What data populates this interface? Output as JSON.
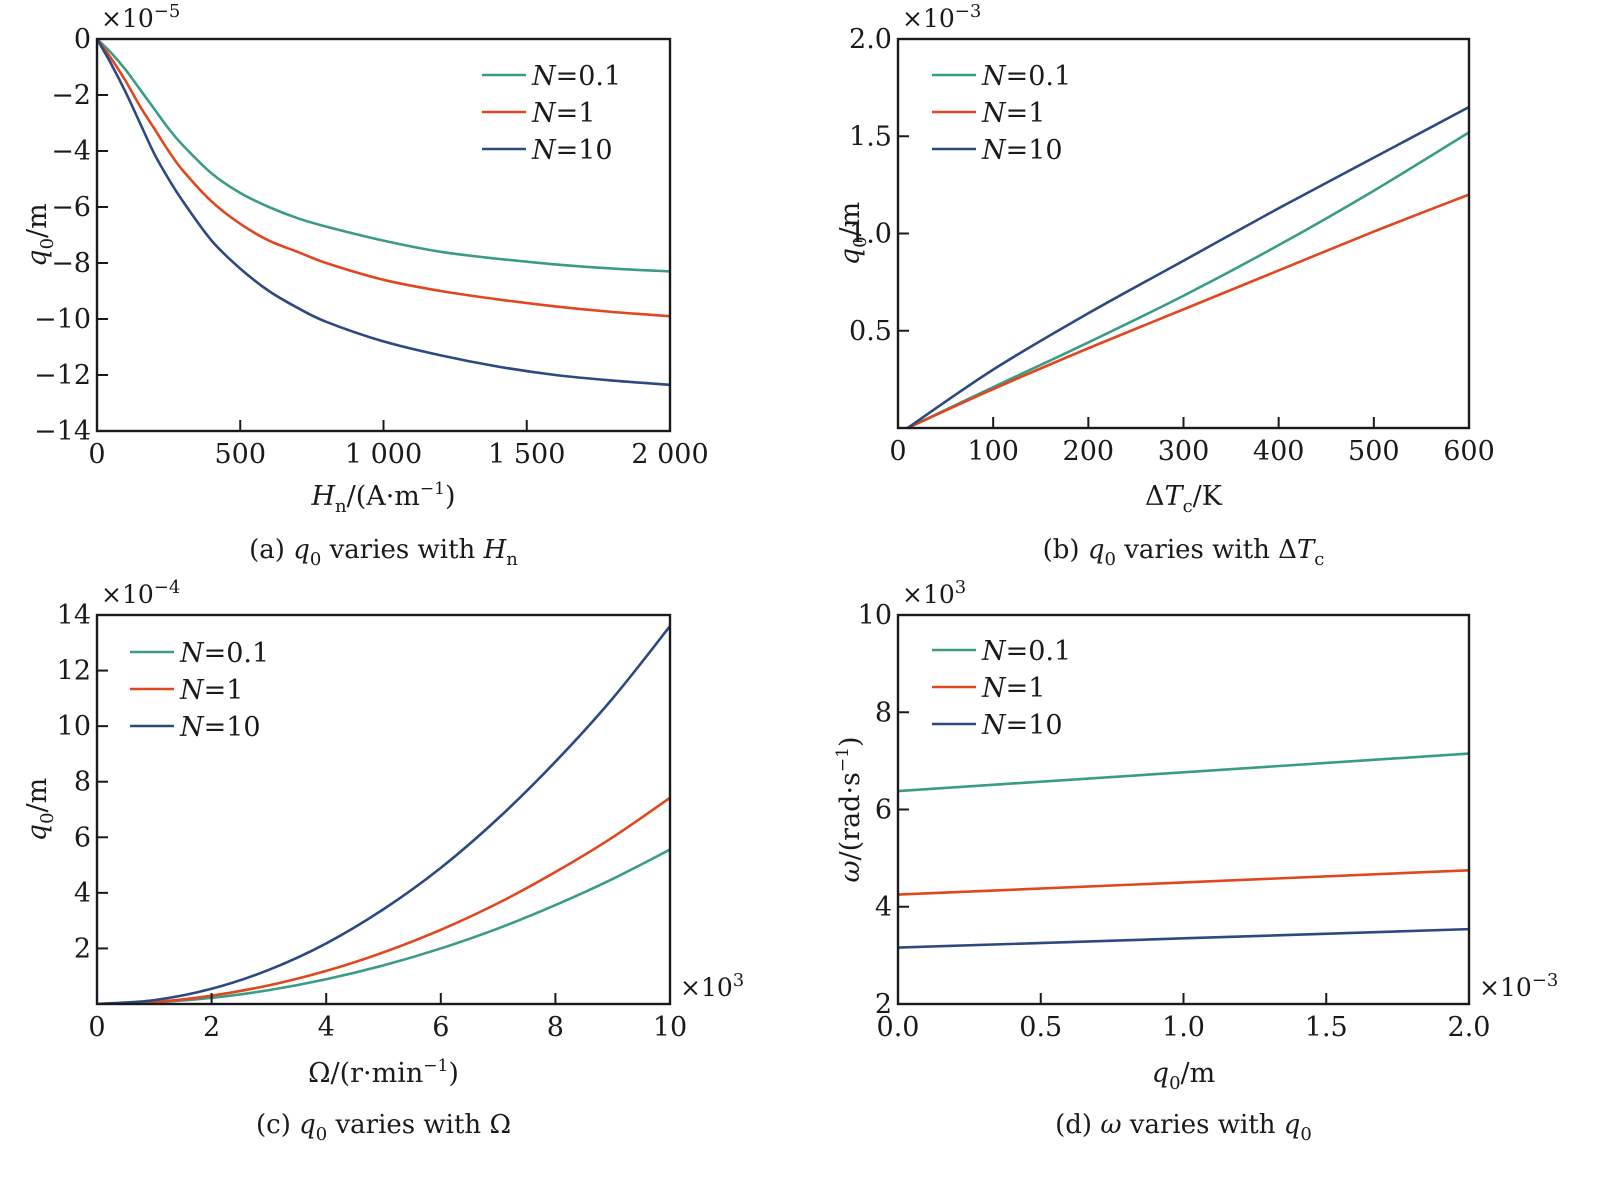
{
  "figure": {
    "colors": {
      "N=0.1": "#3a9c86",
      "N=1": "#e0471f",
      "N=10": "#2d4a80",
      "axis": "#1a1a1a"
    }
  },
  "chart_data": [
    {
      "id": "a",
      "type": "line",
      "caption": "(a) q0 varies with Hn",
      "caption_parts": [
        "(a) ",
        "q",
        "0",
        " varies with ",
        "H",
        "n"
      ],
      "xlabel": "Hn/(A·m⁻¹)",
      "xlabel_parts": [
        "H",
        "n",
        "/(A·m",
        "−1",
        ")"
      ],
      "ylabel": "q0/m",
      "ylabel_parts": [
        "q",
        "0",
        "/m"
      ],
      "y_multiplier": "×10⁻⁵",
      "y_multiplier_parts": [
        "×10",
        "−5"
      ],
      "x_multiplier": null,
      "xlim": [
        0,
        2000
      ],
      "ylim": [
        -14,
        0
      ],
      "xticks": [
        0,
        500,
        1000,
        1500,
        2000
      ],
      "xtick_labels": [
        "0",
        "500",
        "1 000",
        "1 500",
        "2 000"
      ],
      "yticks": [
        0,
        -2,
        -4,
        -6,
        -8,
        -10,
        -12,
        -14
      ],
      "ytick_labels": [
        "0",
        "−2",
        "−4",
        "−6",
        "−8",
        "−10",
        "−12",
        "−14"
      ],
      "grid": false,
      "legend_position": "top-right",
      "series": [
        {
          "name": "N=0.1",
          "label_var": "N",
          "label_val": "0.1",
          "x": [
            0,
            50,
            100,
            150,
            200,
            250,
            300,
            400,
            500,
            600,
            700,
            800,
            1000,
            1200,
            1400,
            1600,
            1800,
            2000
          ],
          "y": [
            0,
            -0.5,
            -1.1,
            -1.8,
            -2.5,
            -3.2,
            -3.8,
            -4.8,
            -5.5,
            -6.0,
            -6.4,
            -6.7,
            -7.2,
            -7.6,
            -7.85,
            -8.05,
            -8.2,
            -8.3
          ]
        },
        {
          "name": "N=1",
          "label_var": "N",
          "label_val": "1",
          "x": [
            0,
            50,
            100,
            150,
            200,
            250,
            300,
            400,
            500,
            600,
            700,
            800,
            1000,
            1200,
            1400,
            1600,
            1800,
            2000
          ],
          "y": [
            0,
            -0.7,
            -1.5,
            -2.4,
            -3.2,
            -4.0,
            -4.7,
            -5.8,
            -6.6,
            -7.2,
            -7.6,
            -8.0,
            -8.6,
            -9.0,
            -9.3,
            -9.55,
            -9.75,
            -9.9
          ]
        },
        {
          "name": "N=10",
          "label_var": "N",
          "label_val": "10",
          "x": [
            0,
            50,
            100,
            150,
            200,
            250,
            300,
            400,
            500,
            600,
            700,
            800,
            1000,
            1200,
            1400,
            1600,
            1800,
            2000
          ],
          "y": [
            0,
            -0.9,
            -1.9,
            -3.0,
            -4.1,
            -5.0,
            -5.8,
            -7.2,
            -8.2,
            -9.0,
            -9.6,
            -10.1,
            -10.8,
            -11.3,
            -11.7,
            -12.0,
            -12.2,
            -12.35
          ]
        }
      ]
    },
    {
      "id": "b",
      "type": "line",
      "caption": "(b) q0 varies with ΔTc",
      "caption_parts": [
        "(b) ",
        "q",
        "0",
        " varies with Δ",
        "T",
        "c"
      ],
      "xlabel": "ΔTc/K",
      "xlabel_parts": [
        "Δ",
        "T",
        "c",
        "/K"
      ],
      "ylabel": "q0/m",
      "ylabel_parts": [
        "q",
        "0",
        "/m"
      ],
      "y_multiplier": "×10⁻³",
      "y_multiplier_parts": [
        "×10",
        "−3"
      ],
      "x_multiplier": null,
      "xlim": [
        0,
        600
      ],
      "ylim": [
        0,
        2.0
      ],
      "xticks": [
        0,
        100,
        200,
        300,
        400,
        500,
        600
      ],
      "xtick_labels": [
        "0",
        "100",
        "200",
        "300",
        "400",
        "500",
        "600"
      ],
      "yticks": [
        0.5,
        1.0,
        1.5,
        2.0
      ],
      "ytick_labels": [
        "0.5",
        "1.0",
        "1.5",
        "2.0"
      ],
      "grid": false,
      "legend_position": "top-left",
      "series": [
        {
          "name": "N=0.1",
          "label_var": "N",
          "label_val": "0.1",
          "x": [
            10,
            100,
            200,
            300,
            400,
            500,
            600
          ],
          "y": [
            0,
            0.21,
            0.44,
            0.68,
            0.94,
            1.22,
            1.52
          ]
        },
        {
          "name": "N=1",
          "label_var": "N",
          "label_val": "1",
          "x": [
            10,
            100,
            200,
            300,
            400,
            500,
            600
          ],
          "y": [
            0,
            0.2,
            0.41,
            0.61,
            0.81,
            1.01,
            1.2
          ]
        },
        {
          "name": "N=10",
          "label_var": "N",
          "label_val": "10",
          "x": [
            10,
            100,
            200,
            300,
            400,
            500,
            600
          ],
          "y": [
            0,
            0.3,
            0.59,
            0.86,
            1.13,
            1.39,
            1.65
          ]
        }
      ]
    },
    {
      "id": "c",
      "type": "line",
      "caption": "(c) q0 varies with Ω",
      "caption_parts": [
        "(c) ",
        "q",
        "0",
        " varies with Ω",
        "",
        ""
      ],
      "xlabel": "Ω/(r·min⁻¹)",
      "xlabel_parts": [
        "Ω",
        "",
        "/(r·min",
        "−1",
        ")"
      ],
      "ylabel": "q0/m",
      "ylabel_parts": [
        "q",
        "0",
        "/m"
      ],
      "y_multiplier": "×10⁻⁴",
      "y_multiplier_parts": [
        "×10",
        "−4"
      ],
      "x_multiplier": "×10³",
      "x_multiplier_parts": [
        "×10",
        "3"
      ],
      "xlim": [
        0,
        10
      ],
      "ylim": [
        0,
        14
      ],
      "xticks": [
        0,
        2,
        4,
        6,
        8,
        10
      ],
      "xtick_labels": [
        "0",
        "2",
        "4",
        "6",
        "8",
        "10"
      ],
      "yticks": [
        2,
        4,
        6,
        8,
        10,
        12,
        14
      ],
      "ytick_labels": [
        "2",
        "4",
        "6",
        "8",
        "10",
        "12",
        "14"
      ],
      "grid": false,
      "legend_position": "top-left",
      "series": [
        {
          "name": "N=0.1",
          "label_var": "N",
          "label_val": "0.1",
          "x": [
            0,
            1,
            2,
            3,
            4,
            5,
            6,
            7,
            8,
            9,
            10
          ],
          "y": [
            0,
            0.06,
            0.22,
            0.5,
            0.89,
            1.39,
            2.0,
            2.72,
            3.56,
            4.5,
            5.56
          ]
        },
        {
          "name": "N=1",
          "label_var": "N",
          "label_val": "1",
          "x": [
            0,
            1,
            2,
            3,
            4,
            5,
            6,
            7,
            8,
            9,
            10
          ],
          "y": [
            0,
            0.07,
            0.3,
            0.67,
            1.19,
            1.86,
            2.67,
            3.63,
            4.75,
            6.0,
            7.42
          ]
        },
        {
          "name": "N=10",
          "label_var": "N",
          "label_val": "10",
          "x": [
            0,
            1,
            2,
            3,
            4,
            5,
            6,
            7,
            8,
            9,
            10
          ],
          "y": [
            0,
            0.14,
            0.55,
            1.23,
            2.18,
            3.41,
            4.9,
            6.68,
            8.72,
            11.0,
            13.6
          ]
        }
      ]
    },
    {
      "id": "d",
      "type": "line",
      "caption": "(d) ω varies with q0",
      "caption_parts": [
        "(d) ",
        "ω",
        "",
        " varies with ",
        "q",
        "0"
      ],
      "xlabel": "q0/m",
      "xlabel_parts": [
        "q",
        "0",
        "/m",
        "",
        ""
      ],
      "ylabel": "ω/(rad·s⁻¹)",
      "ylabel_parts": [
        "ω",
        "",
        "/(rad·s",
        "−1",
        ")"
      ],
      "y_multiplier": "×10³",
      "y_multiplier_parts": [
        "×10",
        "3"
      ],
      "x_multiplier": "×10⁻³",
      "x_multiplier_parts": [
        "×10",
        "−3"
      ],
      "xlim": [
        0,
        2.0
      ],
      "ylim": [
        2,
        10
      ],
      "xticks": [
        0,
        0.5,
        1.0,
        1.5,
        2.0
      ],
      "xtick_labels": [
        "0.0",
        "0.5",
        "1.0",
        "1.5",
        "2.0"
      ],
      "yticks": [
        2,
        4,
        6,
        8,
        10
      ],
      "ytick_labels": [
        "2",
        "4",
        "6",
        "8",
        "10"
      ],
      "grid": false,
      "legend_position": "top-left",
      "series": [
        {
          "name": "N=0.1",
          "label_var": "N",
          "label_val": "0.1",
          "x": [
            0,
            2.0
          ],
          "y": [
            6.38,
            7.15
          ]
        },
        {
          "name": "N=1",
          "label_var": "N",
          "label_val": "1",
          "x": [
            0,
            2.0
          ],
          "y": [
            4.25,
            4.75
          ]
        },
        {
          "name": "N=10",
          "label_var": "N",
          "label_val": "10",
          "x": [
            0,
            2.0
          ],
          "y": [
            3.16,
            3.54
          ]
        }
      ]
    }
  ]
}
